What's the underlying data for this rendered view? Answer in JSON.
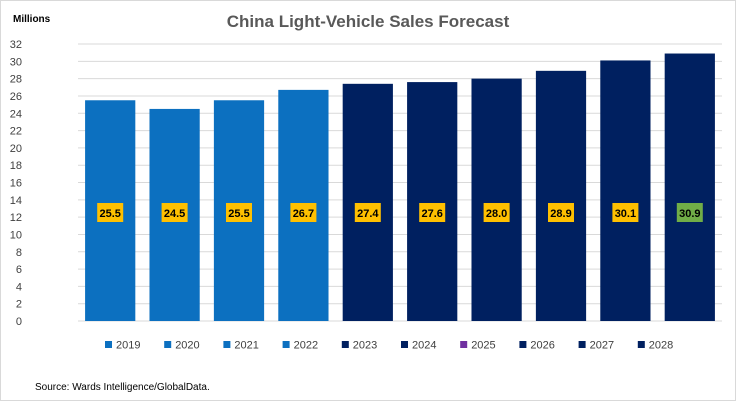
{
  "chart_data": {
    "type": "bar",
    "title": "China Light-Vehicle Sales Forecast",
    "unit_label": "Millions",
    "xlabel": "",
    "ylabel": "Millions",
    "ylim": [
      0,
      32
    ],
    "y_ticks": [
      0,
      2,
      4,
      6,
      8,
      10,
      12,
      14,
      16,
      18,
      20,
      22,
      24,
      26,
      28,
      30,
      32
    ],
    "grid": true,
    "legend_position": "bottom",
    "categories": [
      "2019",
      "2020",
      "2021",
      "2022",
      "2023",
      "2024",
      "2025",
      "2026",
      "2027",
      "2028"
    ],
    "values": [
      25.5,
      24.5,
      25.5,
      26.7,
      27.4,
      27.6,
      28.0,
      28.9,
      30.1,
      30.9
    ],
    "data_labels": [
      "25.5",
      "24.5",
      "25.5",
      "26.7",
      "27.4",
      "27.6",
      "28.0",
      "28.9",
      "30.1",
      "30.9"
    ],
    "bar_colors": [
      "#0c70c0",
      "#0c70c0",
      "#0c70c0",
      "#0c70c0",
      "#002060",
      "#002060",
      "#002060",
      "#002060",
      "#002060",
      "#002060"
    ],
    "legend_colors": [
      "#0c70c0",
      "#0c70c0",
      "#0c70c0",
      "#0c70c0",
      "#002060",
      "#002060",
      "#7030a0",
      "#002060",
      "#002060",
      "#002060"
    ],
    "label_bg_colors": [
      "#ffc000",
      "#ffc000",
      "#ffc000",
      "#ffc000",
      "#ffc000",
      "#ffc000",
      "#ffc000",
      "#ffc000",
      "#ffc000",
      "#70ad47"
    ],
    "gridline_color": "#d9d9d9",
    "source": "Source: Wards Intelligence/GlobalData."
  }
}
